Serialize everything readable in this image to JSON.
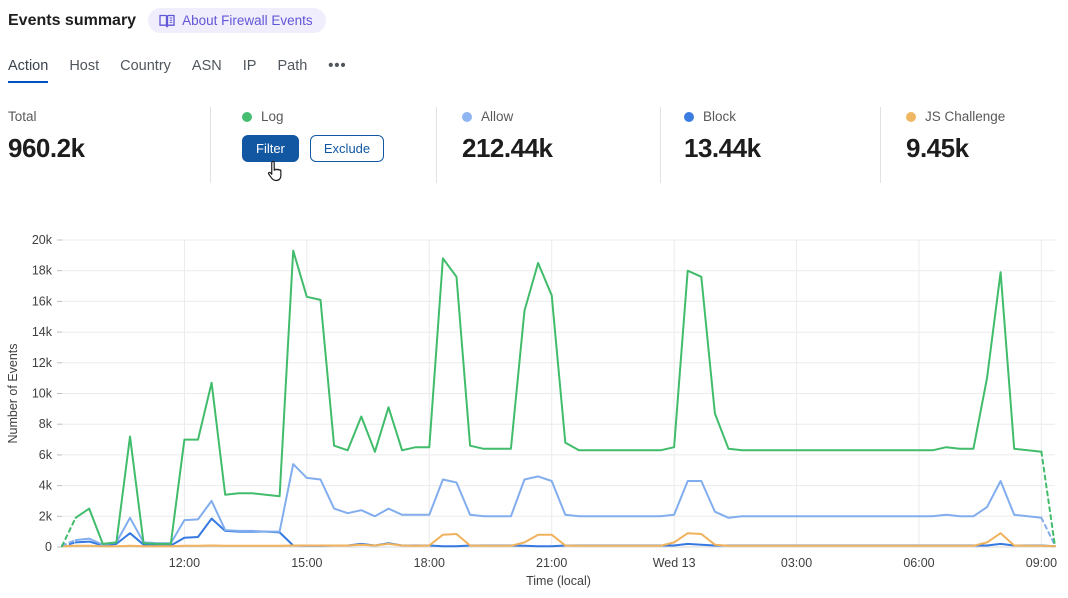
{
  "header": {
    "title": "Events summary",
    "badge_label": "About Firewall Events"
  },
  "tabs": [
    {
      "label": "Action",
      "active": true
    },
    {
      "label": "Host",
      "active": false
    },
    {
      "label": "Country",
      "active": false
    },
    {
      "label": "ASN",
      "active": false
    },
    {
      "label": "IP",
      "active": false
    },
    {
      "label": "Path",
      "active": false
    },
    {
      "label": "•••",
      "active": false
    }
  ],
  "stats": {
    "total": {
      "label": "Total",
      "value": "960.2k"
    },
    "log": {
      "label": "Log",
      "color": "#46bd71",
      "filter_label": "Filter",
      "exclude_label": "Exclude"
    },
    "allow": {
      "label": "Allow",
      "value": "212.44k",
      "color": "#8fb5f2"
    },
    "block": {
      "label": "Block",
      "value": "13.44k",
      "color": "#3b7de0"
    },
    "js_challenge": {
      "label": "JS Challenge",
      "value": "9.45k",
      "color": "#f0b763"
    }
  },
  "chart_data": {
    "type": "line",
    "xlabel": "Time (local)",
    "ylabel": "Number of Events",
    "ylim": [
      0,
      20000
    ],
    "y_ticks": [
      "0",
      "2k",
      "4k",
      "6k",
      "8k",
      "10k",
      "12k",
      "14k",
      "16k",
      "18k",
      "20k"
    ],
    "x_ticks": [
      {
        "position": 9,
        "label": "12:00"
      },
      {
        "position": 18,
        "label": "15:00"
      },
      {
        "position": 27,
        "label": "18:00"
      },
      {
        "position": 36,
        "label": "21:00"
      },
      {
        "position": 45,
        "label": "Wed 13"
      },
      {
        "position": 54,
        "label": "03:00"
      },
      {
        "position": 63,
        "label": "06:00"
      },
      {
        "position": 72,
        "label": "09:00"
      }
    ],
    "grid": true,
    "legend_position": "in-stat-cards",
    "note_units": "values_k are thousands of events per 20-minute interval; dashed segments = partial data at range edges",
    "series": [
      {
        "name": "Log",
        "color": "#41bc6b",
        "dash_start": true,
        "dash_end": true,
        "values_k": [
          0.05,
          1.9,
          2.5,
          0.2,
          0.3,
          7.2,
          0.25,
          0.2,
          0.2,
          7.0,
          7.0,
          10.7,
          3.4,
          3.5,
          3.5,
          3.4,
          3.3,
          19.3,
          16.3,
          16.1,
          6.6,
          6.3,
          8.5,
          6.2,
          9.1,
          6.3,
          6.5,
          6.5,
          18.8,
          17.6,
          6.6,
          6.4,
          6.4,
          6.4,
          15.4,
          18.5,
          16.4,
          6.8,
          6.3,
          6.3,
          6.3,
          6.3,
          6.3,
          6.3,
          6.3,
          6.5,
          18.0,
          17.6,
          8.7,
          6.4,
          6.3,
          6.3,
          6.3,
          6.3,
          6.3,
          6.3,
          6.3,
          6.3,
          6.3,
          6.3,
          6.3,
          6.3,
          6.3,
          6.3,
          6.3,
          6.5,
          6.4,
          6.4,
          11.0,
          17.9,
          6.4,
          6.3,
          6.2,
          0.05
        ]
      },
      {
        "name": "Allow",
        "color": "#82adee",
        "dash_start": true,
        "dash_end": true,
        "values_k": [
          0.1,
          0.45,
          0.55,
          0.15,
          0.3,
          1.9,
          0.3,
          0.25,
          0.25,
          1.75,
          1.8,
          3.0,
          1.1,
          1.05,
          1.05,
          1.0,
          1.0,
          5.4,
          4.5,
          4.4,
          2.5,
          2.2,
          2.4,
          2.0,
          2.5,
          2.1,
          2.1,
          2.1,
          4.4,
          4.2,
          2.1,
          2.0,
          2.0,
          2.0,
          4.4,
          4.6,
          4.3,
          2.1,
          2.0,
          2.0,
          2.0,
          2.0,
          2.0,
          2.0,
          2.0,
          2.1,
          4.3,
          4.3,
          2.3,
          1.9,
          2.0,
          2.0,
          2.0,
          2.0,
          2.0,
          2.0,
          2.0,
          2.0,
          2.0,
          2.0,
          2.0,
          2.0,
          2.0,
          2.0,
          2.0,
          2.1,
          2.0,
          2.0,
          2.6,
          4.3,
          2.1,
          2.0,
          1.9,
          0.1
        ]
      },
      {
        "name": "Block",
        "color": "#3679e0",
        "dash_start": true,
        "dash_end": false,
        "values_k": [
          0.05,
          0.3,
          0.35,
          0.1,
          0.2,
          0.9,
          0.15,
          0.1,
          0.1,
          0.6,
          0.65,
          1.85,
          1.05,
          1.0,
          1.0,
          1.0,
          0.95,
          0.1,
          0.08,
          0.08,
          0.1,
          0.1,
          0.2,
          0.1,
          0.25,
          0.1,
          0.1,
          0.1,
          0.05,
          0.05,
          0.1,
          0.1,
          0.1,
          0.1,
          0.08,
          0.05,
          0.05,
          0.1,
          0.1,
          0.1,
          0.1,
          0.1,
          0.1,
          0.1,
          0.1,
          0.1,
          0.2,
          0.15,
          0.1,
          0.1,
          0.1,
          0.1,
          0.1,
          0.1,
          0.1,
          0.1,
          0.1,
          0.1,
          0.1,
          0.1,
          0.1,
          0.1,
          0.1,
          0.1,
          0.1,
          0.1,
          0.1,
          0.1,
          0.1,
          0.2,
          0.1,
          0.1,
          0.1,
          0.05
        ]
      },
      {
        "name": "JS Challenge",
        "color": "#f0b25c",
        "dash_start": false,
        "dash_end": false,
        "values_k": [
          0.05,
          0.08,
          0.08,
          0.05,
          0.05,
          0.08,
          0.05,
          0.05,
          0.05,
          0.08,
          0.08,
          0.1,
          0.08,
          0.08,
          0.08,
          0.08,
          0.08,
          0.1,
          0.1,
          0.1,
          0.1,
          0.1,
          0.15,
          0.1,
          0.2,
          0.1,
          0.08,
          0.1,
          0.8,
          0.85,
          0.1,
          0.08,
          0.08,
          0.08,
          0.3,
          0.8,
          0.8,
          0.1,
          0.08,
          0.08,
          0.08,
          0.08,
          0.08,
          0.08,
          0.08,
          0.3,
          0.9,
          0.85,
          0.15,
          0.08,
          0.08,
          0.08,
          0.08,
          0.08,
          0.08,
          0.08,
          0.08,
          0.08,
          0.08,
          0.08,
          0.08,
          0.08,
          0.08,
          0.08,
          0.08,
          0.08,
          0.08,
          0.08,
          0.3,
          0.9,
          0.1,
          0.08,
          0.08,
          0.05
        ]
      }
    ]
  }
}
